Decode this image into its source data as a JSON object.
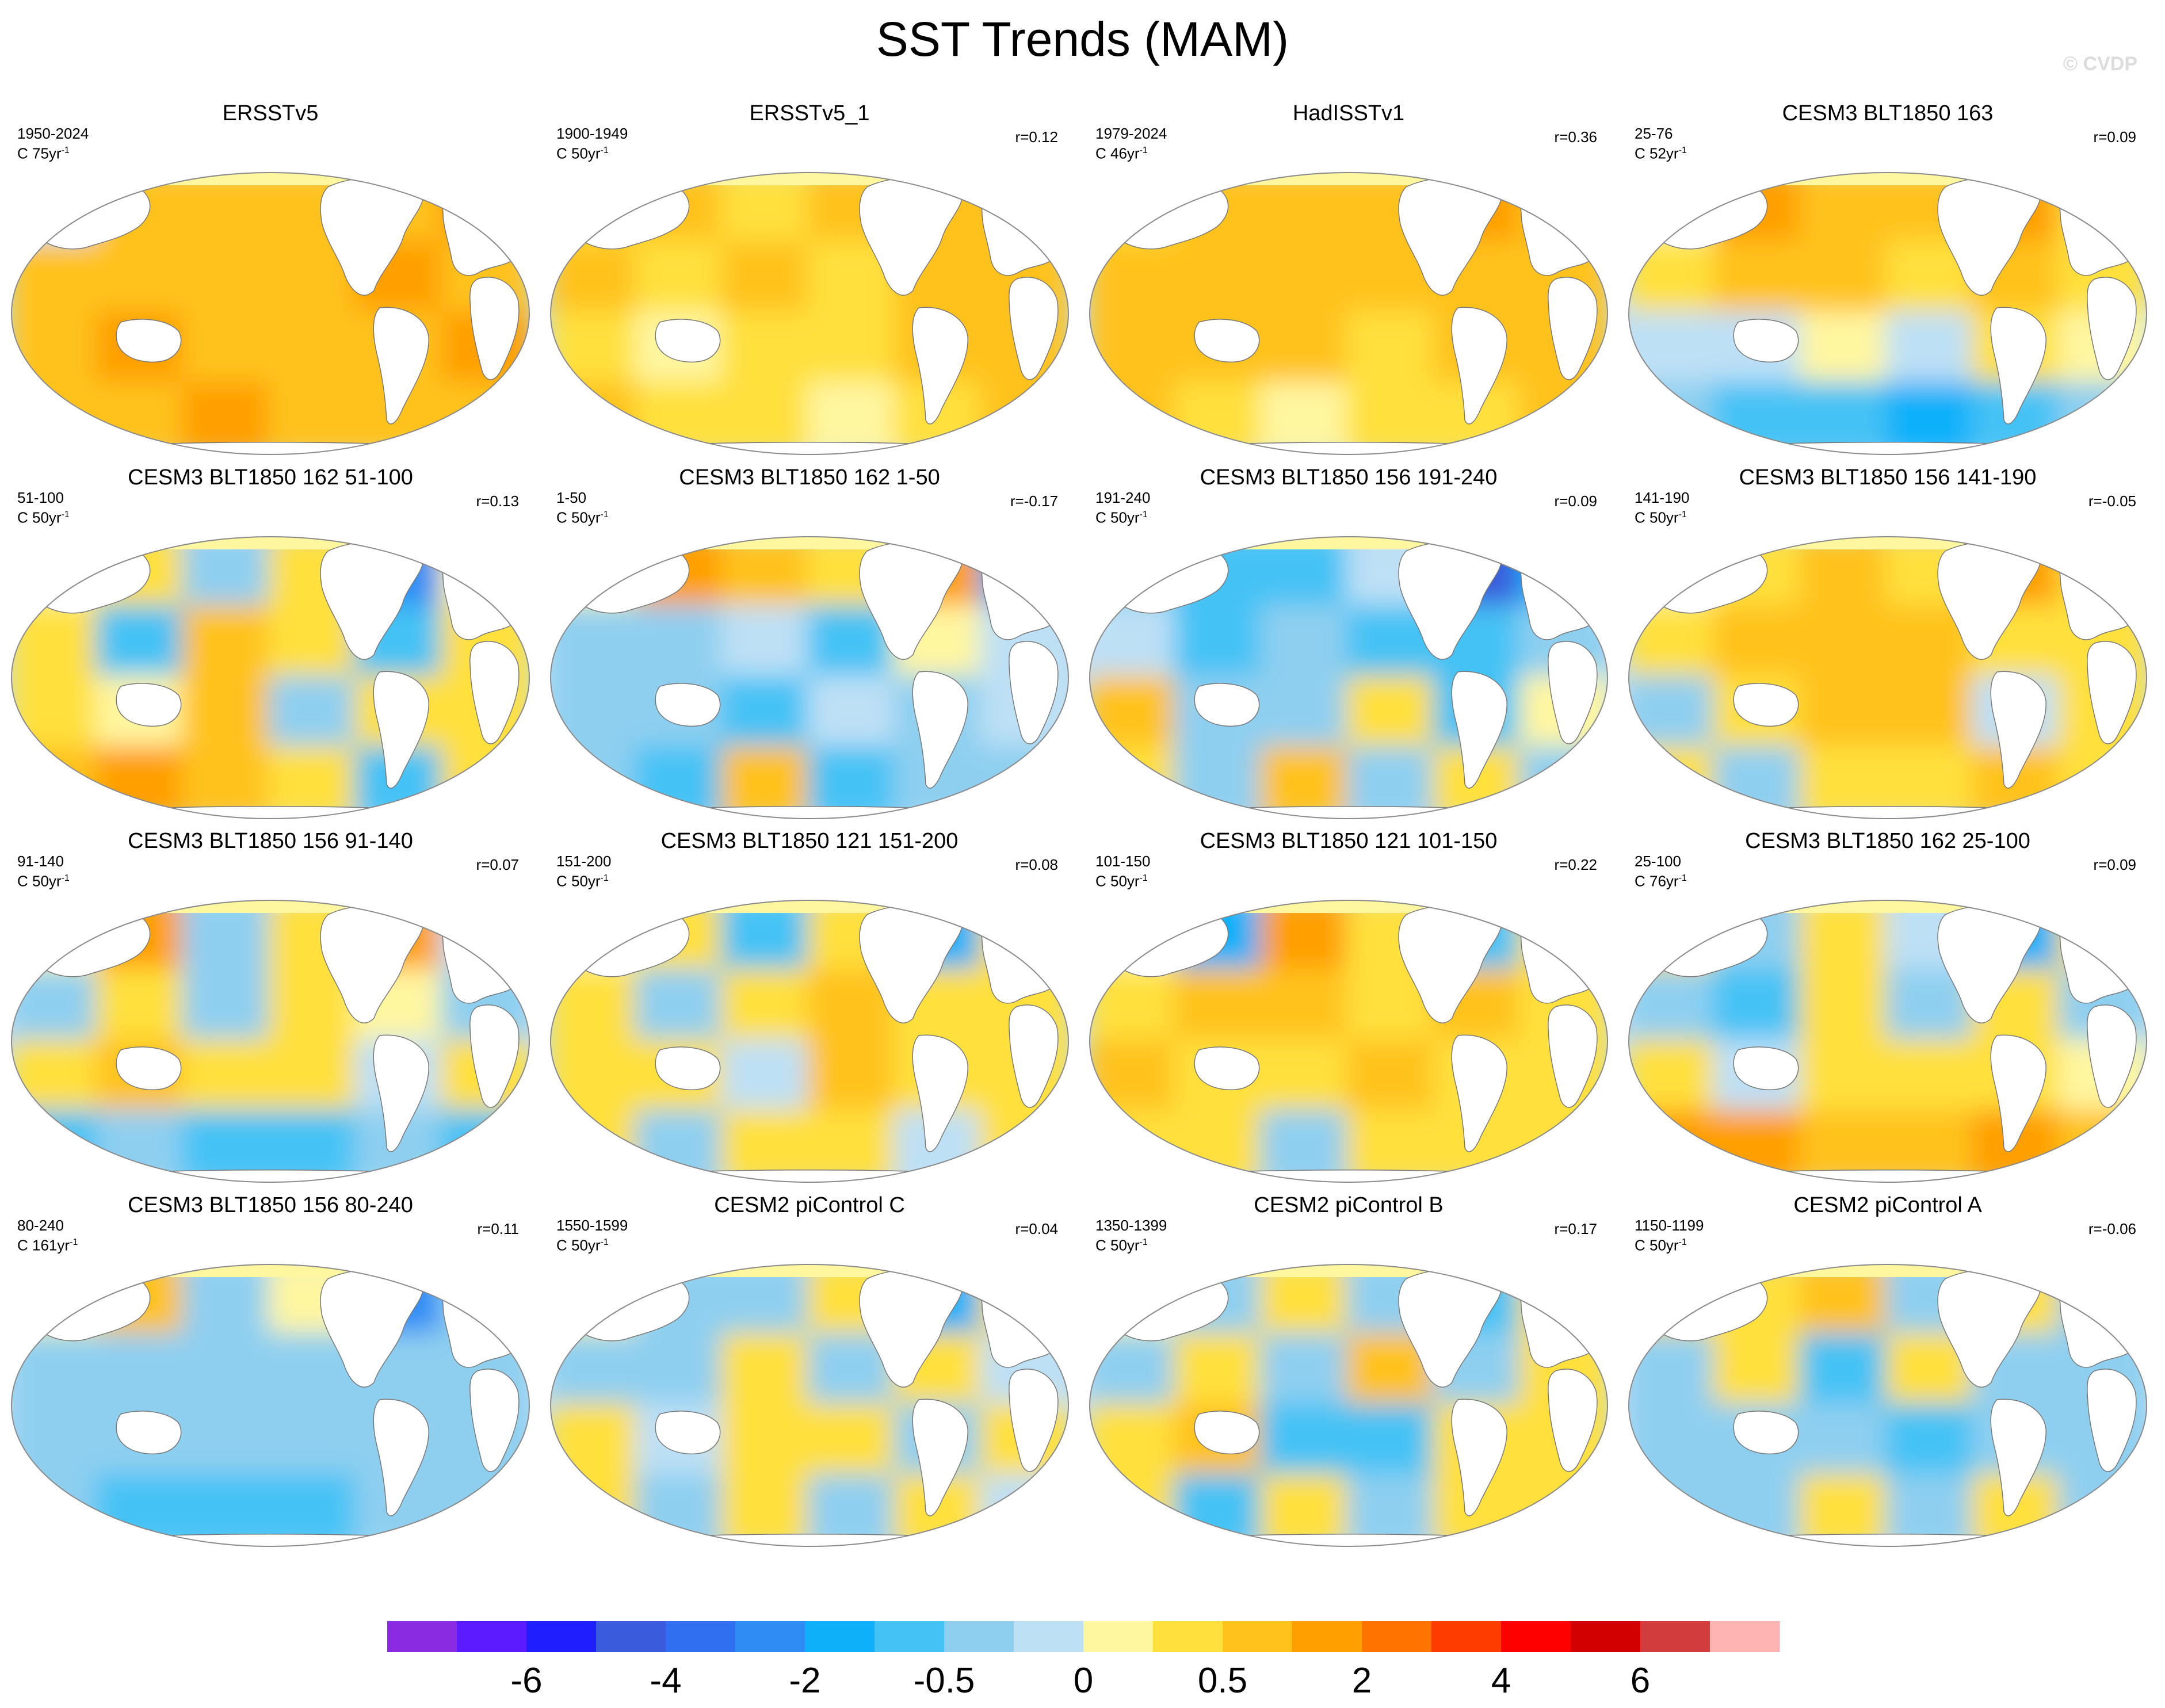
{
  "title": "SST Trends (MAM)",
  "watermark": "© CVDP",
  "chart_data": {
    "type": "heatmap",
    "description_free": true,
    "projection": "robinson-like global map",
    "panels": [
      {
        "title": "ERSSTv5",
        "period": "1950-2024",
        "trend_label": "C 75yr",
        "r": "",
        "pattern": [
          [
            0,
            0.6,
            1.0,
            0.9,
            0.8,
            1.1
          ],
          [
            0.9,
            1.0,
            0.9,
            1.0,
            1.1,
            1.0
          ],
          [
            1.0,
            1.1,
            1.0,
            1.0,
            0.9,
            1.1
          ],
          [
            1.0,
            1.0,
            1.1,
            1.0,
            1.0,
            1.0
          ]
        ]
      },
      {
        "title": "ERSSTv5_1",
        "period": "1900-1949",
        "trend_label": "C 50yr",
        "r": "r=0.12",
        "pattern": [
          [
            0.3,
            0.8,
            0.5,
            0.9,
            0.8,
            0.6
          ],
          [
            0.6,
            0.3,
            0.7,
            0.4,
            0.8,
            0.9
          ],
          [
            0.4,
            0.2,
            0.5,
            0.3,
            0.6,
            0.7
          ],
          [
            0.6,
            0.3,
            0.4,
            0.2,
            0.5,
            0.6
          ]
        ]
      },
      {
        "title": "HadISSTv1",
        "period": "1979-2024",
        "trend_label": "C 46yr",
        "r": "r=0.36",
        "pattern": [
          [
            0.5,
            0.9,
            1.0,
            0.9,
            1.1,
            0.7
          ],
          [
            0.9,
            1.0,
            0.9,
            0.7,
            0.9,
            1.0
          ],
          [
            1.0,
            0.8,
            0.9,
            0.3,
            0.8,
            1.0
          ],
          [
            0.8,
            0.4,
            0.2,
            0.3,
            0.5,
            0.9
          ]
        ]
      },
      {
        "title": "CESM3 BLT1850 163",
        "period": "25-76",
        "trend_label": "C 52yr",
        "r": "r=0.09",
        "pattern": [
          [
            0.2,
            1.6,
            0.8,
            0.6,
            1.8,
            0.5
          ],
          [
            0.4,
            0.9,
            0.7,
            0.5,
            0.9,
            0.4
          ],
          [
            -0.2,
            -0.1,
            0.2,
            -0.2,
            0.3,
            0.1
          ],
          [
            -0.4,
            -0.6,
            -0.8,
            -1.0,
            -0.5,
            -0.3
          ]
        ]
      },
      {
        "title": "CESM3 BLT1850 162 51-100",
        "period": "51-100",
        "trend_label": "C 50yr",
        "r": "r=0.13",
        "pattern": [
          [
            0.1,
            0.4,
            -0.4,
            0.3,
            -2.5,
            0.2
          ],
          [
            0.3,
            -0.6,
            0.8,
            0.4,
            -0.5,
            0.3
          ],
          [
            0.3,
            0.1,
            0.7,
            -0.4,
            0.5,
            0.4
          ],
          [
            1.0,
            1.2,
            0.8,
            0.4,
            -0.6,
            0.3
          ]
        ]
      },
      {
        "title": "CESM3 BLT1850 162 1-50",
        "period": "1-50",
        "trend_label": "C 50yr",
        "r": "r=-0.17",
        "pattern": [
          [
            0.2,
            1.4,
            0.7,
            0.3,
            1.8,
            -1.0
          ],
          [
            -0.3,
            -0.4,
            -0.2,
            -0.5,
            0.1,
            -0.2
          ],
          [
            -0.4,
            -0.3,
            -0.6,
            -0.2,
            -0.3,
            -0.2
          ],
          [
            -0.3,
            -0.5,
            0.8,
            -0.6,
            -0.4,
            -0.3
          ]
        ]
      },
      {
        "title": "CESM3 BLT1850 156 191-240",
        "period": "191-240",
        "trend_label": "C 50yr",
        "r": "r=0.09",
        "pattern": [
          [
            -0.3,
            -0.5,
            -0.8,
            -0.2,
            -4.0,
            -1.2
          ],
          [
            -0.2,
            -0.5,
            -0.3,
            -0.6,
            -0.8,
            -0.4
          ],
          [
            0.6,
            -0.3,
            -0.4,
            0.3,
            -0.6,
            0.2
          ],
          [
            0.5,
            -0.3,
            0.6,
            -0.4,
            0.4,
            -0.3
          ]
        ]
      },
      {
        "title": "CESM3 BLT1850 156 141-190",
        "period": "141-190",
        "trend_label": "C 50yr",
        "r": "r=-0.05",
        "pattern": [
          [
            0.2,
            0.5,
            0.7,
            0.4,
            1.3,
            0.3
          ],
          [
            0.4,
            0.8,
            0.9,
            1.0,
            0.4,
            0.5
          ],
          [
            -0.3,
            0.3,
            0.9,
            0.8,
            -0.2,
            0.4
          ],
          [
            0.4,
            -0.3,
            0.3,
            0.4,
            0.6,
            0.3
          ]
        ]
      },
      {
        "title": "CESM3 BLT1850 156 91-140",
        "period": "91-140",
        "trend_label": "C 50yr",
        "r": "r=0.07",
        "pattern": [
          [
            0.1,
            1.2,
            -0.4,
            0.3,
            1.4,
            -0.2
          ],
          [
            -0.4,
            0.3,
            -0.3,
            0.4,
            0.2,
            -0.3
          ],
          [
            0.4,
            0.6,
            0.3,
            0.5,
            -0.2,
            0.4
          ],
          [
            -0.6,
            -0.4,
            -0.5,
            -0.8,
            -0.3,
            -0.5
          ]
        ]
      },
      {
        "title": "CESM3 BLT1850 121 151-200",
        "period": "151-200",
        "trend_label": "C 50yr",
        "r": "r=0.08",
        "pattern": [
          [
            0.1,
            0.3,
            -0.6,
            0.4,
            -1.0,
            0.3
          ],
          [
            0.4,
            -0.3,
            0.5,
            0.6,
            0.4,
            0.3
          ],
          [
            0.4,
            0.3,
            -0.2,
            0.7,
            0.5,
            0.4
          ],
          [
            0.3,
            -0.3,
            0.4,
            0.3,
            -0.2,
            0.4
          ]
        ]
      },
      {
        "title": "CESM3 BLT1850 121 101-150",
        "period": "101-150",
        "trend_label": "C 50yr",
        "r": "r=0.22",
        "pattern": [
          [
            0.2,
            -1.4,
            1.2,
            0.4,
            -0.8,
            0.5
          ],
          [
            0.5,
            0.7,
            0.6,
            0.4,
            0.7,
            0.4
          ],
          [
            0.6,
            0.4,
            0.5,
            0.7,
            0.3,
            0.5
          ],
          [
            0.3,
            0.5,
            -0.3,
            0.4,
            0.3,
            0.4
          ]
        ]
      },
      {
        "title": "CESM3 BLT1850 162 25-100",
        "period": "25-100",
        "trend_label": "C 76yr",
        "r": "r=0.09",
        "pattern": [
          [
            0.3,
            -0.4,
            0.3,
            -0.2,
            -1.5,
            0.4
          ],
          [
            -0.3,
            -0.5,
            0.3,
            -0.4,
            0.4,
            -0.3
          ],
          [
            0.3,
            -0.2,
            0.5,
            0.4,
            0.3,
            0.2
          ],
          [
            1.2,
            1.5,
            1.0,
            0.6,
            1.3,
            0.8
          ]
        ]
      },
      {
        "title": "CESM3 BLT1850 156 80-240",
        "period": "80-240",
        "trend_label": "C 161yr",
        "r": "r=0.11",
        "pattern": [
          [
            0.1,
            0.8,
            -0.3,
            0.2,
            -2.0,
            -0.4
          ],
          [
            -0.3,
            -0.4,
            -0.3,
            -0.3,
            -0.4,
            -0.3
          ],
          [
            -0.3,
            -0.4,
            -0.4,
            -0.3,
            -0.3,
            -0.3
          ],
          [
            -0.3,
            -0.6,
            -0.7,
            -0.6,
            -0.4,
            -0.3
          ]
        ]
      },
      {
        "title": "CESM2 piControl C",
        "period": "1550-1599",
        "trend_label": "C 50yr",
        "r": "r=0.04",
        "pattern": [
          [
            0.2,
            -0.4,
            -0.3,
            0.4,
            -1.2,
            0.3
          ],
          [
            -0.4,
            -0.3,
            0.4,
            -0.3,
            0.3,
            -0.2
          ],
          [
            0.3,
            -0.2,
            0.3,
            0.5,
            -0.3,
            0.3
          ],
          [
            0.3,
            -0.3,
            0.4,
            -0.3,
            0.3,
            -0.2
          ]
        ]
      },
      {
        "title": "CESM2 piControl B",
        "period": "1350-1399",
        "trend_label": "C 50yr",
        "r": "r=0.17",
        "pattern": [
          [
            0.2,
            -0.3,
            0.4,
            -0.3,
            -0.8,
            0.3
          ],
          [
            -0.3,
            0.4,
            -0.3,
            0.6,
            -0.3,
            0.4
          ],
          [
            0.4,
            0.6,
            -0.7,
            -0.9,
            0.3,
            0.5
          ],
          [
            0.3,
            -0.5,
            0.3,
            -0.4,
            0.3,
            0.4
          ]
        ]
      },
      {
        "title": "CESM2 piControl A",
        "period": "1150-1199",
        "trend_label": "C 50yr",
        "r": "r=-0.06",
        "pattern": [
          [
            0.3,
            0.4,
            0.6,
            -0.4,
            0.3,
            -0.3
          ],
          [
            -0.4,
            0.5,
            -0.6,
            0.3,
            -0.4,
            -0.3
          ],
          [
            -0.3,
            -0.4,
            -0.3,
            -0.5,
            -0.3,
            -0.4
          ],
          [
            -0.3,
            -0.4,
            0.3,
            -0.3,
            0.4,
            -0.3
          ]
        ]
      }
    ],
    "colorbar": {
      "colors": [
        "#8a2be2",
        "#5a1bff",
        "#1e1eff",
        "#3a5cdc",
        "#2f6ff0",
        "#2f8cf5",
        "#0fb0fa",
        "#45c2f5",
        "#8ecff0",
        "#bde0f5",
        "#fff6a0",
        "#ffe03c",
        "#ffc21c",
        "#ff9f00",
        "#ff7300",
        "#ff3c00",
        "#ff0000",
        "#d20000",
        "#d23c3c",
        "#ffb4b4"
      ],
      "tick_labels": [
        "-6",
        "-4",
        "-2",
        "-0.5",
        "0",
        "0.5",
        "2",
        "4",
        "6"
      ]
    }
  }
}
